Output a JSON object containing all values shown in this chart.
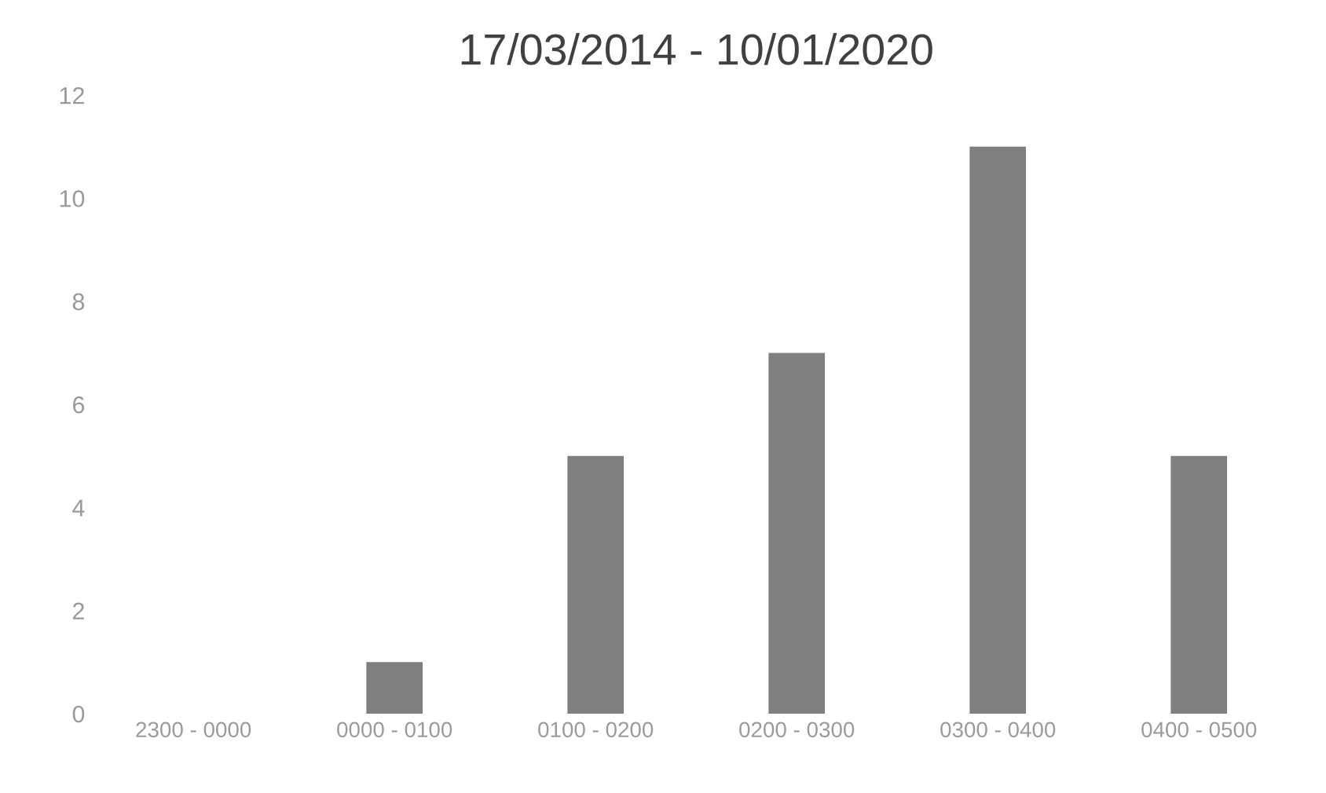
{
  "chart_data": {
    "type": "bar",
    "title": "17/03/2014 - 10/01/2020",
    "categories": [
      "2300 - 0000",
      "0000 - 0100",
      "0100 - 0200",
      "0200 - 0300",
      "0300 - 0400",
      "0400 - 0500"
    ],
    "values": [
      0,
      1,
      5,
      7,
      11,
      5
    ],
    "color": "#7f7f7f",
    "ylim": [
      0,
      12
    ],
    "yticks": [
      0,
      2,
      4,
      6,
      8,
      10,
      12
    ],
    "grid": false
  }
}
